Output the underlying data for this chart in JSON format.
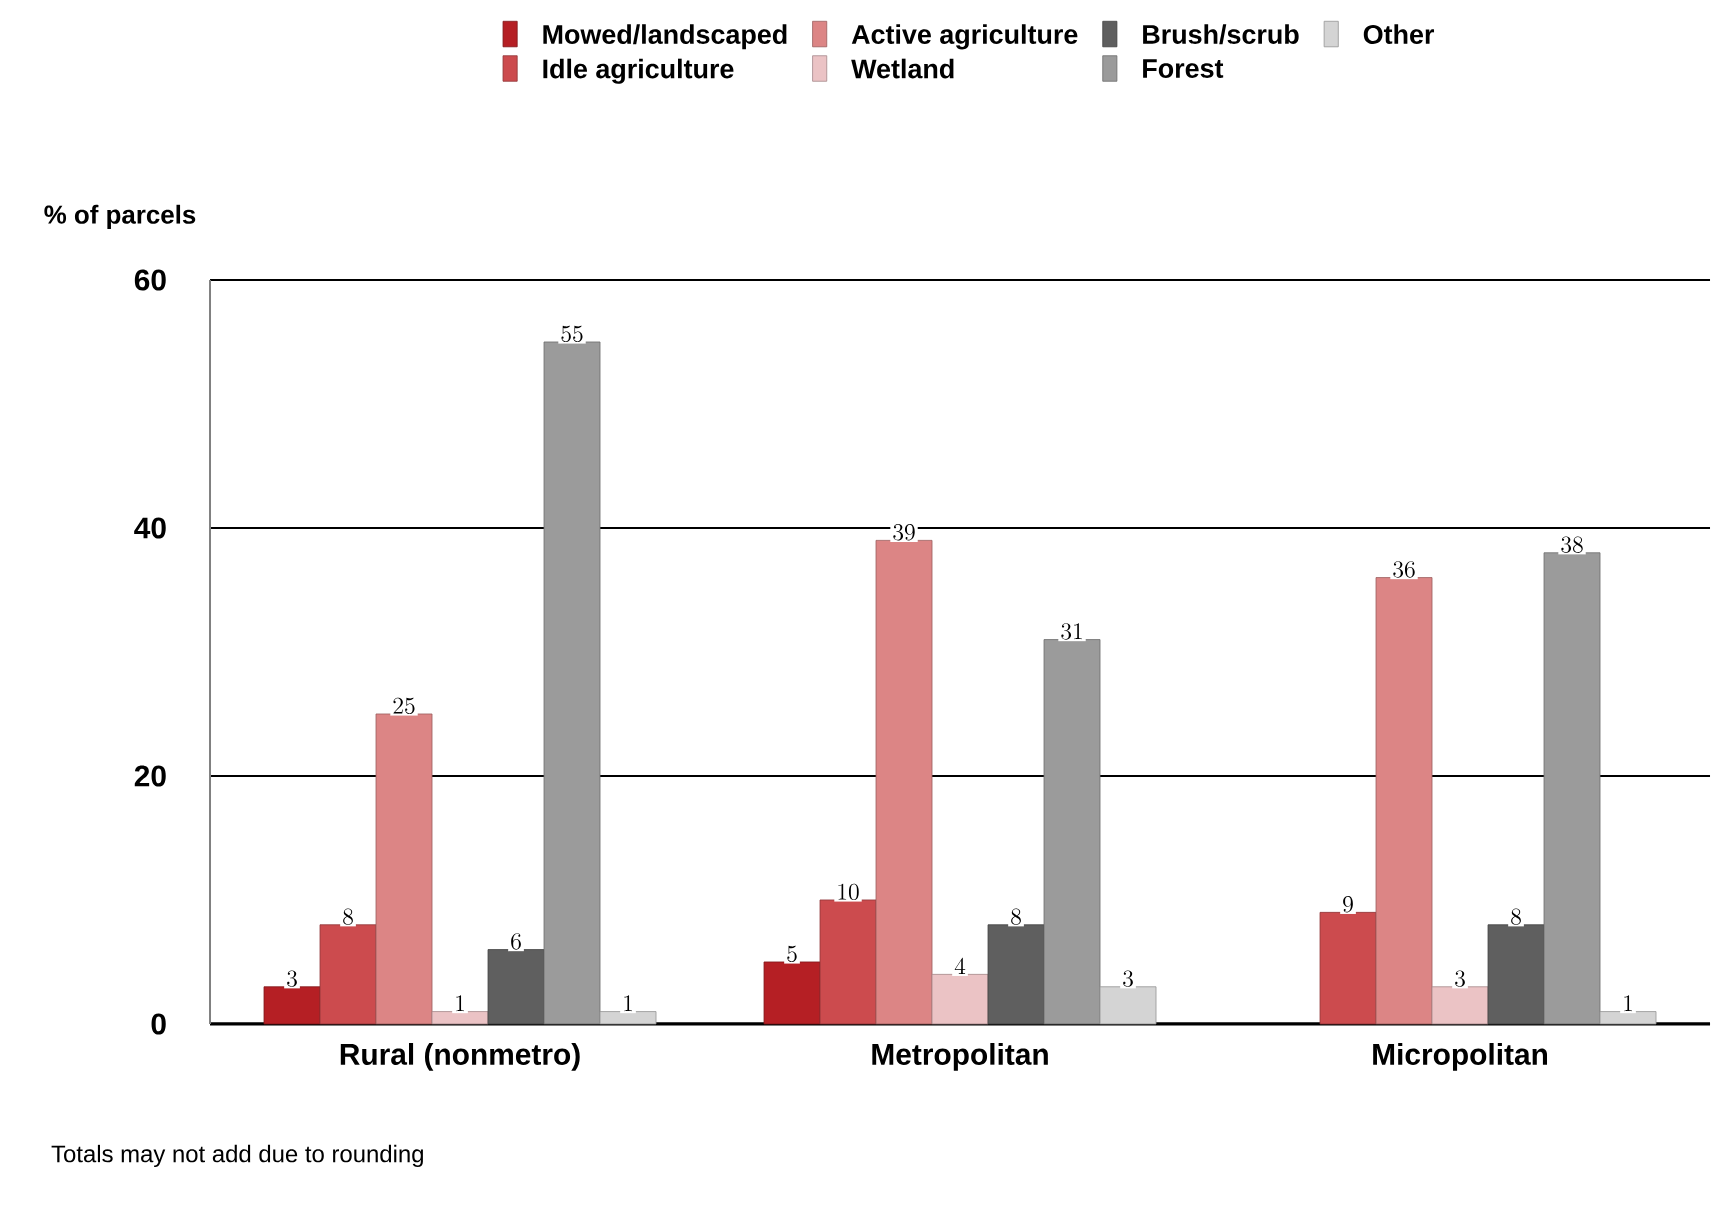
{
  "chart_data": {
    "type": "bar",
    "ylabel": "% of parcels",
    "categories": [
      "Rural (nonmetro)",
      "Metropolitan",
      "Micropolitan"
    ],
    "series": [
      {
        "name": "Mowed/landscaped",
        "color": "#b51f24",
        "values": [
          3,
          5,
          null
        ]
      },
      {
        "name": "Idle agriculture",
        "color": "#cc4b4e",
        "values": [
          8,
          10,
          9
        ]
      },
      {
        "name": "Active agriculture",
        "color": "#dc8585",
        "values": [
          25,
          39,
          36
        ]
      },
      {
        "name": "Wetland",
        "color": "#ebc3c5",
        "values": [
          1,
          4,
          3
        ]
      },
      {
        "name": "Brush/scrub",
        "color": "#5f5f5f",
        "values": [
          6,
          8,
          8
        ]
      },
      {
        "name": "Forest",
        "color": "#9b9b9b",
        "values": [
          55,
          31,
          38
        ]
      },
      {
        "name": "Other",
        "color": "#d4d4d4",
        "values": [
          1,
          3,
          1
        ]
      }
    ],
    "ylim": [
      0,
      60
    ],
    "yticks": [
      0,
      20,
      40,
      60
    ],
    "grid": "y",
    "legend": "top",
    "data_labels": true,
    "annotations": [
      "Totals may not add due to rounding"
    ]
  }
}
